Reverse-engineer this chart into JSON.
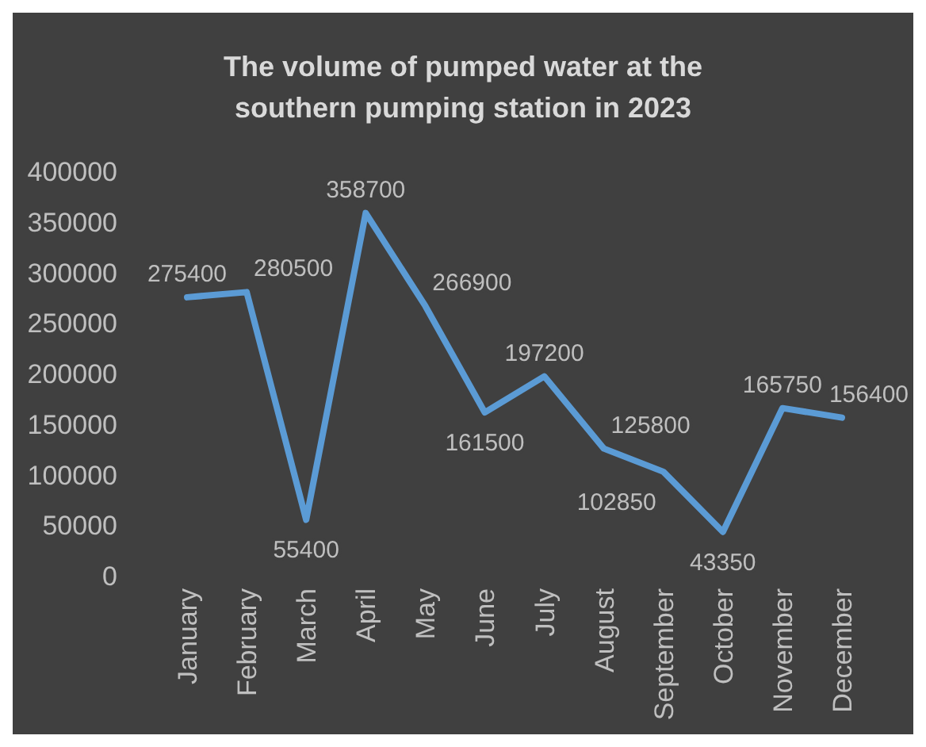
{
  "chart_data": {
    "type": "line",
    "title": "The volume of pumped water at the southern pumping station in 2023",
    "categories": [
      "January",
      "February",
      "March",
      "April",
      "May",
      "June",
      "July",
      "August",
      "September",
      "October",
      "November",
      "December"
    ],
    "series": [
      {
        "color": "#5b9bd5",
        "values": [
          275400,
          280500,
          55400,
          358700,
          266900,
          161500,
          197200,
          125800,
          102850,
          43350,
          165750,
          156400
        ]
      }
    ],
    "ylim": [
      0,
      400000
    ],
    "yticks": [
      0,
      50000,
      100000,
      150000,
      200000,
      250000,
      300000,
      350000,
      400000
    ],
    "data_labels": true,
    "marker": "none",
    "line_style": "solid"
  }
}
